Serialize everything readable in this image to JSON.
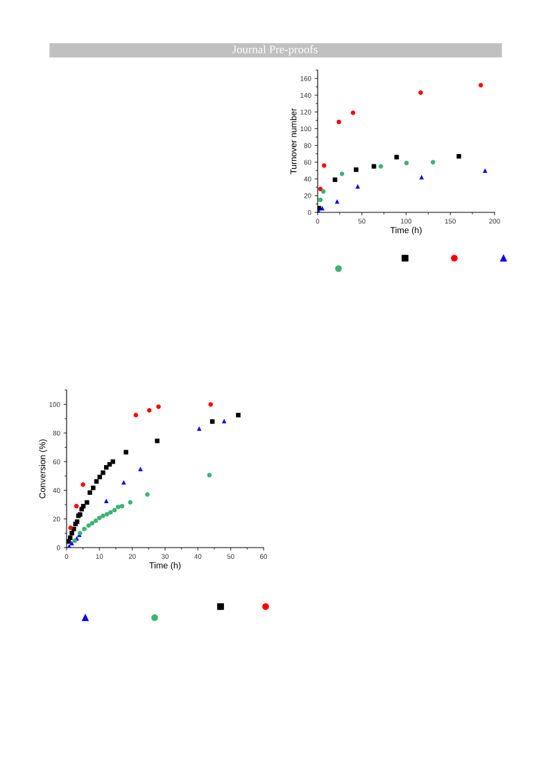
{
  "chart_data": [
    {
      "type": "scatter",
      "xlabel": "Time (h)",
      "ylabel": "Turnover number",
      "xlim": [
        0,
        200
      ],
      "ylim": [
        0,
        170
      ],
      "xticks": [
        0,
        50,
        100,
        150,
        200
      ],
      "yticks": [
        0,
        20,
        40,
        60,
        80,
        100,
        120,
        140,
        160
      ],
      "grid": false,
      "legend": false,
      "annotations": [
        "Journal Pre-proofs"
      ],
      "series": [
        {
          "color": "#000000",
          "marker": "square",
          "x": [
            1.3,
            19.6,
            43.5,
            63.6,
            89.3,
            159.7
          ],
          "values": [
            5,
            39,
            51,
            55,
            66,
            67
          ]
        },
        {
          "color": "#ff0000",
          "marker": "circle",
          "x": [
            3.1,
            7.3,
            24,
            40,
            116.5,
            184.5
          ],
          "values": [
            28,
            56,
            108,
            119,
            143,
            152
          ]
        },
        {
          "color": "#0000ff",
          "marker": "triangle",
          "x": [
            1.3,
            5.2,
            22,
            45.3,
            117.5,
            189.3
          ],
          "values": [
            1,
            5,
            13,
            31,
            42,
            50
          ]
        },
        {
          "color": "#3cb371",
          "marker": "circle",
          "x": [
            3.1,
            6.5,
            27.5,
            71.5,
            100.5,
            130.4
          ],
          "values": [
            15,
            25,
            46,
            55,
            59,
            60
          ]
        }
      ]
    },
    {
      "type": "scatter",
      "xlabel": "Time (h)",
      "ylabel": "Conversion (%)",
      "xlim": [
        0,
        60
      ],
      "ylim": [
        0,
        110
      ],
      "xticks": [
        0,
        10,
        20,
        30,
        40,
        50,
        60
      ],
      "yticks": [
        0,
        20,
        40,
        60,
        80,
        100
      ],
      "grid": false,
      "legend": false,
      "series": [
        {
          "color": "#000000",
          "marker": "square",
          "x": [
            0.6,
            1.1,
            1.6,
            2.2,
            2.7,
            3.2,
            3.6,
            4.1,
            4.6,
            5.1,
            6.2,
            7.1,
            8.1,
            9.1,
            10.1,
            11.1,
            12.1,
            13.1,
            14.1,
            18.1,
            27.6,
            44.4,
            52.3
          ],
          "values": [
            4.3,
            6.9,
            10.1,
            13,
            16.5,
            18.1,
            22.2,
            23.1,
            26.8,
            28.9,
            31.5,
            38.4,
            41.7,
            46.2,
            49.3,
            52.3,
            56,
            58.1,
            60,
            66.6,
            74.5,
            88,
            92.5
          ]
        },
        {
          "color": "#ff0000",
          "marker": "circle",
          "x": [
            1.2,
            3.0,
            5.0,
            21.1,
            25.2,
            28,
            43.9
          ],
          "values": [
            13.8,
            28.9,
            44,
            92.5,
            95.8,
            98.4,
            100
          ]
        },
        {
          "color": "#0000ff",
          "marker": "triangle",
          "x": [
            0.8,
            1.6,
            3.1,
            3.9,
            12.1,
            17.4,
            22.5,
            40.4,
            48
          ],
          "values": [
            1,
            3.2,
            6.4,
            9,
            32.6,
            45.6,
            54.9,
            83.1,
            88.3
          ]
        },
        {
          "color": "#3cb371",
          "marker": "circle",
          "x": [
            2.5,
            4.1,
            5.4,
            6.7,
            7.8,
            8.9,
            10,
            11.1,
            12.3,
            13.4,
            14.6,
            15.7,
            16.9,
            19.4,
            24.6,
            43.5
          ],
          "values": [
            4.8,
            10.1,
            13,
            15.4,
            17,
            18.8,
            20.7,
            22.2,
            23.3,
            24.6,
            26.2,
            28.4,
            28.9,
            31.6,
            37.1,
            50.6
          ]
        }
      ]
    }
  ]
}
